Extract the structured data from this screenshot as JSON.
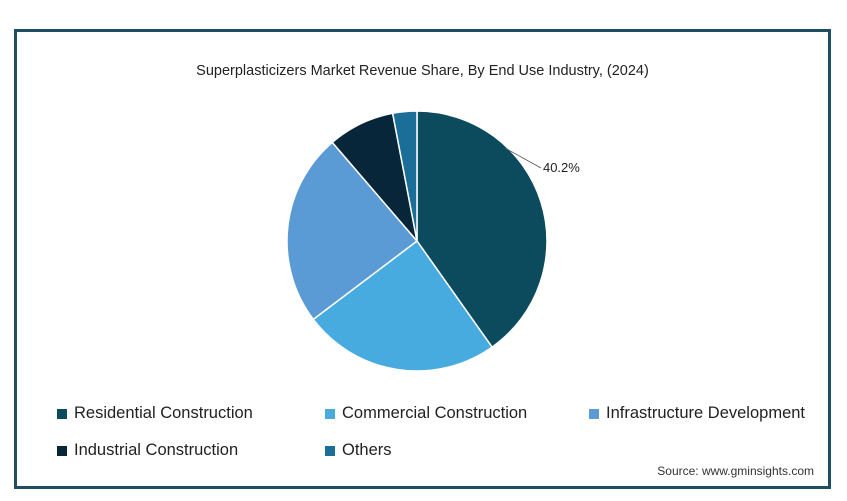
{
  "chart_data": {
    "type": "pie",
    "title": "Superplasticizers Market Revenue Share, By End Use Industry,  (2024)",
    "slices": [
      {
        "label": "Residential Construction",
        "value": 40.2,
        "color": "#0c4a5e",
        "data_label": "40.2%"
      },
      {
        "label": "Commercial Construction",
        "value": 24.5,
        "color": "#47abe0",
        "data_label": ""
      },
      {
        "label": "Infrastructure Development",
        "value": 24.0,
        "color": "#5b9bd5",
        "data_label": ""
      },
      {
        "label": "Industrial Construction",
        "value": 8.3,
        "color": "#08263a",
        "data_label": ""
      },
      {
        "label": "Others",
        "value": 3.0,
        "color": "#1a6e98",
        "data_label": ""
      }
    ],
    "legend_position": "bottom"
  },
  "source": "Source: www.gminsights.com"
}
